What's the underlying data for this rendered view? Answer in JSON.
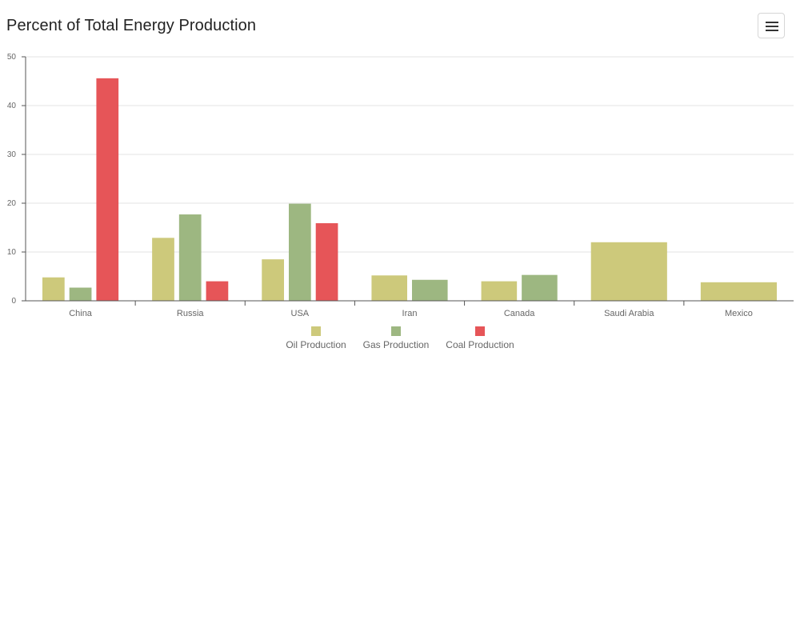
{
  "header": {
    "title": "Percent of Total Energy Production",
    "menu_icon": "hamburger-menu-icon"
  },
  "chart_data": {
    "type": "bar",
    "title": "Percent of Total Energy Production",
    "xlabel": "",
    "ylabel": "",
    "ylim": [
      0,
      50
    ],
    "yticks": [
      0,
      10,
      20,
      30,
      40,
      50
    ],
    "grid": true,
    "legend_position": "bottom",
    "categories": [
      "China",
      "Russia",
      "USA",
      "Iran",
      "Canada",
      "Saudi Arabia",
      "Mexico"
    ],
    "series": [
      {
        "name": "Oil Production",
        "color": "#cdc97b",
        "values": [
          4.8,
          12.9,
          8.5,
          5.2,
          4.0,
          12.0,
          3.8
        ]
      },
      {
        "name": "Gas Production",
        "color": "#9db781",
        "values": [
          2.7,
          17.7,
          19.9,
          4.3,
          5.3,
          null,
          null
        ]
      },
      {
        "name": "Coal Production",
        "color": "#e65558",
        "values": [
          45.6,
          4.0,
          15.9,
          null,
          null,
          null,
          null
        ]
      }
    ]
  }
}
